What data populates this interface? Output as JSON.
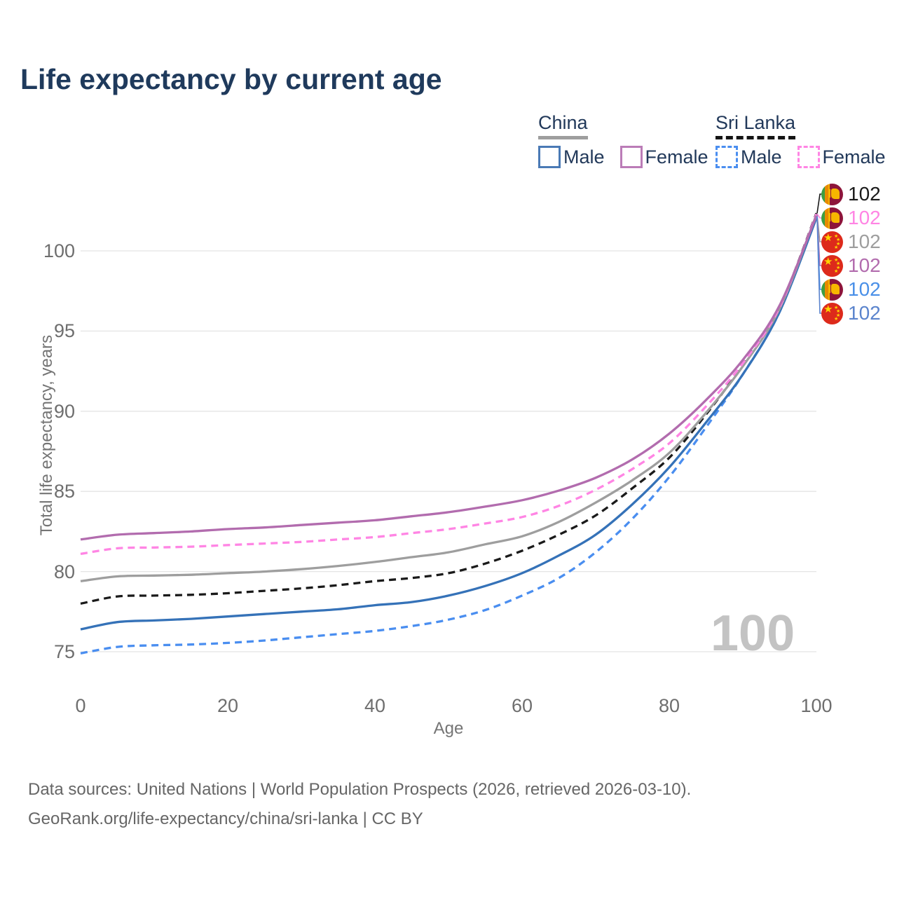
{
  "title": "Life expectancy by current age",
  "legend": {
    "china": {
      "header": "China",
      "male_label": "Male",
      "female_label": "Female"
    },
    "sri_lanka": {
      "header": "Sri Lanka",
      "male_label": "Male",
      "female_label": "Female"
    }
  },
  "watermark": "100",
  "footer": {
    "line1": "Data sources: United Nations | World Population Prospects (2026, retrieved 2026-03-10).",
    "line2": "GeoRank.org/life-expectancy/china/sri-lanka | CC BY"
  },
  "end_labels": [
    {
      "flag": "lk",
      "series": "Sri Lanka",
      "value": "102",
      "color": "#1a1a1a"
    },
    {
      "flag": "lk",
      "series": "Sri Lanka Female",
      "value": "102",
      "color": "#ff85e4"
    },
    {
      "flag": "cn",
      "series": "China",
      "value": "102",
      "color": "#9e9e9e"
    },
    {
      "flag": "cn",
      "series": "China Female",
      "value": "102",
      "color": "#b26cae"
    },
    {
      "flag": "lk",
      "series": "Sri Lanka Male",
      "value": "102",
      "color": "#4a90e8"
    },
    {
      "flag": "cn",
      "series": "China Male",
      "value": "102",
      "color": "#5b84cd"
    }
  ],
  "chart_data": {
    "type": "line",
    "title": "Life expectancy by current age",
    "xlabel": "Age",
    "ylabel": "Total life expectancy, years",
    "x_ticks": [
      0,
      20,
      40,
      60,
      80,
      100
    ],
    "y_ticks": [
      75,
      80,
      85,
      90,
      95,
      100
    ],
    "xlim": [
      0,
      100
    ],
    "ylim": [
      74,
      103
    ],
    "grid": "horizontal",
    "ages": [
      0,
      5,
      10,
      15,
      20,
      25,
      30,
      35,
      40,
      45,
      50,
      55,
      60,
      65,
      70,
      75,
      80,
      85,
      90,
      95,
      100
    ],
    "series": [
      {
        "name": "Sri Lanka Male",
        "country": "Sri Lanka",
        "sex": "male",
        "style": "dashed",
        "color": "#4a8ef0",
        "values": [
          74.9,
          75.3,
          75.4,
          75.45,
          75.55,
          75.7,
          75.9,
          76.1,
          76.3,
          76.6,
          77.0,
          77.6,
          78.5,
          79.6,
          81.2,
          83.3,
          85.9,
          89.0,
          92.3,
          96.2,
          102.15
        ]
      },
      {
        "name": "China Male",
        "country": "China",
        "sex": "male",
        "style": "solid",
        "color": "#3572b8",
        "values": [
          76.4,
          76.85,
          76.95,
          77.05,
          77.2,
          77.35,
          77.5,
          77.65,
          77.9,
          78.1,
          78.5,
          79.1,
          79.9,
          81.0,
          82.3,
          84.2,
          86.5,
          89.3,
          92.3,
          96.2,
          102.05
        ]
      },
      {
        "name": "Sri Lanka",
        "country": "Sri Lanka",
        "sex": "both",
        "style": "dashed",
        "color": "#1a1a1a",
        "values": [
          78.0,
          78.45,
          78.5,
          78.55,
          78.65,
          78.8,
          78.95,
          79.15,
          79.4,
          79.6,
          79.9,
          80.5,
          81.3,
          82.3,
          83.5,
          85.2,
          87.1,
          89.8,
          92.9,
          96.5,
          102.35
        ]
      },
      {
        "name": "China",
        "country": "China",
        "sex": "both",
        "style": "solid",
        "color": "#9e9e9e",
        "values": [
          79.4,
          79.7,
          79.75,
          79.8,
          79.9,
          80.0,
          80.15,
          80.35,
          80.6,
          80.9,
          81.2,
          81.7,
          82.2,
          83.1,
          84.3,
          85.7,
          87.4,
          89.9,
          92.8,
          96.4,
          102.25
        ]
      },
      {
        "name": "Sri Lanka Female",
        "country": "Sri Lanka",
        "sex": "female",
        "style": "dashed",
        "color": "#ff85e4",
        "values": [
          81.1,
          81.45,
          81.5,
          81.55,
          81.65,
          81.75,
          81.85,
          82.0,
          82.15,
          82.4,
          82.65,
          83.0,
          83.4,
          84.1,
          85.1,
          86.4,
          88.0,
          90.3,
          93.0,
          96.5,
          102.3
        ]
      },
      {
        "name": "China Female",
        "country": "China",
        "sex": "female",
        "style": "solid",
        "color": "#b26cae",
        "values": [
          82.0,
          82.3,
          82.4,
          82.5,
          82.65,
          82.75,
          82.9,
          83.05,
          83.2,
          83.45,
          83.7,
          84.05,
          84.45,
          85.05,
          85.85,
          87.0,
          88.6,
          90.7,
          93.2,
          96.6,
          102.2
        ]
      }
    ]
  }
}
